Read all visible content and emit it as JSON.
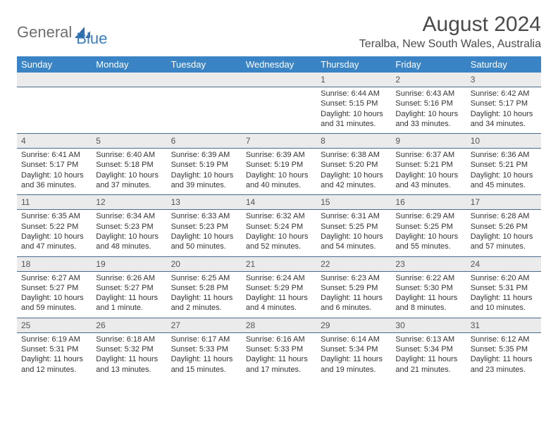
{
  "logo": {
    "part1": "General",
    "part2": "Blue"
  },
  "title": "August 2024",
  "location": "Teralba, New South Wales, Australia",
  "colors": {
    "header_bg": "#3a84c5",
    "header_text": "#ffffff",
    "daynum_bg": "#ebebeb",
    "border": "#4a6a8a",
    "logo_gray": "#6e6e6e",
    "logo_blue": "#3a7ebf"
  },
  "calendar": {
    "day_labels": [
      "Sunday",
      "Monday",
      "Tuesday",
      "Wednesday",
      "Thursday",
      "Friday",
      "Saturday"
    ],
    "weeks": [
      {
        "days": [
          null,
          null,
          null,
          null,
          {
            "n": "1",
            "sunrise": "Sunrise: 6:44 AM",
            "sunset": "Sunset: 5:15 PM",
            "daylight": "Daylight: 10 hours and 31 minutes."
          },
          {
            "n": "2",
            "sunrise": "Sunrise: 6:43 AM",
            "sunset": "Sunset: 5:16 PM",
            "daylight": "Daylight: 10 hours and 33 minutes."
          },
          {
            "n": "3",
            "sunrise": "Sunrise: 6:42 AM",
            "sunset": "Sunset: 5:17 PM",
            "daylight": "Daylight: 10 hours and 34 minutes."
          }
        ]
      },
      {
        "days": [
          {
            "n": "4",
            "sunrise": "Sunrise: 6:41 AM",
            "sunset": "Sunset: 5:17 PM",
            "daylight": "Daylight: 10 hours and 36 minutes."
          },
          {
            "n": "5",
            "sunrise": "Sunrise: 6:40 AM",
            "sunset": "Sunset: 5:18 PM",
            "daylight": "Daylight: 10 hours and 37 minutes."
          },
          {
            "n": "6",
            "sunrise": "Sunrise: 6:39 AM",
            "sunset": "Sunset: 5:19 PM",
            "daylight": "Daylight: 10 hours and 39 minutes."
          },
          {
            "n": "7",
            "sunrise": "Sunrise: 6:39 AM",
            "sunset": "Sunset: 5:19 PM",
            "daylight": "Daylight: 10 hours and 40 minutes."
          },
          {
            "n": "8",
            "sunrise": "Sunrise: 6:38 AM",
            "sunset": "Sunset: 5:20 PM",
            "daylight": "Daylight: 10 hours and 42 minutes."
          },
          {
            "n": "9",
            "sunrise": "Sunrise: 6:37 AM",
            "sunset": "Sunset: 5:21 PM",
            "daylight": "Daylight: 10 hours and 43 minutes."
          },
          {
            "n": "10",
            "sunrise": "Sunrise: 6:36 AM",
            "sunset": "Sunset: 5:21 PM",
            "daylight": "Daylight: 10 hours and 45 minutes."
          }
        ]
      },
      {
        "days": [
          {
            "n": "11",
            "sunrise": "Sunrise: 6:35 AM",
            "sunset": "Sunset: 5:22 PM",
            "daylight": "Daylight: 10 hours and 47 minutes."
          },
          {
            "n": "12",
            "sunrise": "Sunrise: 6:34 AM",
            "sunset": "Sunset: 5:23 PM",
            "daylight": "Daylight: 10 hours and 48 minutes."
          },
          {
            "n": "13",
            "sunrise": "Sunrise: 6:33 AM",
            "sunset": "Sunset: 5:23 PM",
            "daylight": "Daylight: 10 hours and 50 minutes."
          },
          {
            "n": "14",
            "sunrise": "Sunrise: 6:32 AM",
            "sunset": "Sunset: 5:24 PM",
            "daylight": "Daylight: 10 hours and 52 minutes."
          },
          {
            "n": "15",
            "sunrise": "Sunrise: 6:31 AM",
            "sunset": "Sunset: 5:25 PM",
            "daylight": "Daylight: 10 hours and 54 minutes."
          },
          {
            "n": "16",
            "sunrise": "Sunrise: 6:29 AM",
            "sunset": "Sunset: 5:25 PM",
            "daylight": "Daylight: 10 hours and 55 minutes."
          },
          {
            "n": "17",
            "sunrise": "Sunrise: 6:28 AM",
            "sunset": "Sunset: 5:26 PM",
            "daylight": "Daylight: 10 hours and 57 minutes."
          }
        ]
      },
      {
        "days": [
          {
            "n": "18",
            "sunrise": "Sunrise: 6:27 AM",
            "sunset": "Sunset: 5:27 PM",
            "daylight": "Daylight: 10 hours and 59 minutes."
          },
          {
            "n": "19",
            "sunrise": "Sunrise: 6:26 AM",
            "sunset": "Sunset: 5:27 PM",
            "daylight": "Daylight: 11 hours and 1 minute."
          },
          {
            "n": "20",
            "sunrise": "Sunrise: 6:25 AM",
            "sunset": "Sunset: 5:28 PM",
            "daylight": "Daylight: 11 hours and 2 minutes."
          },
          {
            "n": "21",
            "sunrise": "Sunrise: 6:24 AM",
            "sunset": "Sunset: 5:29 PM",
            "daylight": "Daylight: 11 hours and 4 minutes."
          },
          {
            "n": "22",
            "sunrise": "Sunrise: 6:23 AM",
            "sunset": "Sunset: 5:29 PM",
            "daylight": "Daylight: 11 hours and 6 minutes."
          },
          {
            "n": "23",
            "sunrise": "Sunrise: 6:22 AM",
            "sunset": "Sunset: 5:30 PM",
            "daylight": "Daylight: 11 hours and 8 minutes."
          },
          {
            "n": "24",
            "sunrise": "Sunrise: 6:20 AM",
            "sunset": "Sunset: 5:31 PM",
            "daylight": "Daylight: 11 hours and 10 minutes."
          }
        ]
      },
      {
        "days": [
          {
            "n": "25",
            "sunrise": "Sunrise: 6:19 AM",
            "sunset": "Sunset: 5:31 PM",
            "daylight": "Daylight: 11 hours and 12 minutes."
          },
          {
            "n": "26",
            "sunrise": "Sunrise: 6:18 AM",
            "sunset": "Sunset: 5:32 PM",
            "daylight": "Daylight: 11 hours and 13 minutes."
          },
          {
            "n": "27",
            "sunrise": "Sunrise: 6:17 AM",
            "sunset": "Sunset: 5:33 PM",
            "daylight": "Daylight: 11 hours and 15 minutes."
          },
          {
            "n": "28",
            "sunrise": "Sunrise: 6:16 AM",
            "sunset": "Sunset: 5:33 PM",
            "daylight": "Daylight: 11 hours and 17 minutes."
          },
          {
            "n": "29",
            "sunrise": "Sunrise: 6:14 AM",
            "sunset": "Sunset: 5:34 PM",
            "daylight": "Daylight: 11 hours and 19 minutes."
          },
          {
            "n": "30",
            "sunrise": "Sunrise: 6:13 AM",
            "sunset": "Sunset: 5:34 PM",
            "daylight": "Daylight: 11 hours and 21 minutes."
          },
          {
            "n": "31",
            "sunrise": "Sunrise: 6:12 AM",
            "sunset": "Sunset: 5:35 PM",
            "daylight": "Daylight: 11 hours and 23 minutes."
          }
        ]
      }
    ]
  }
}
